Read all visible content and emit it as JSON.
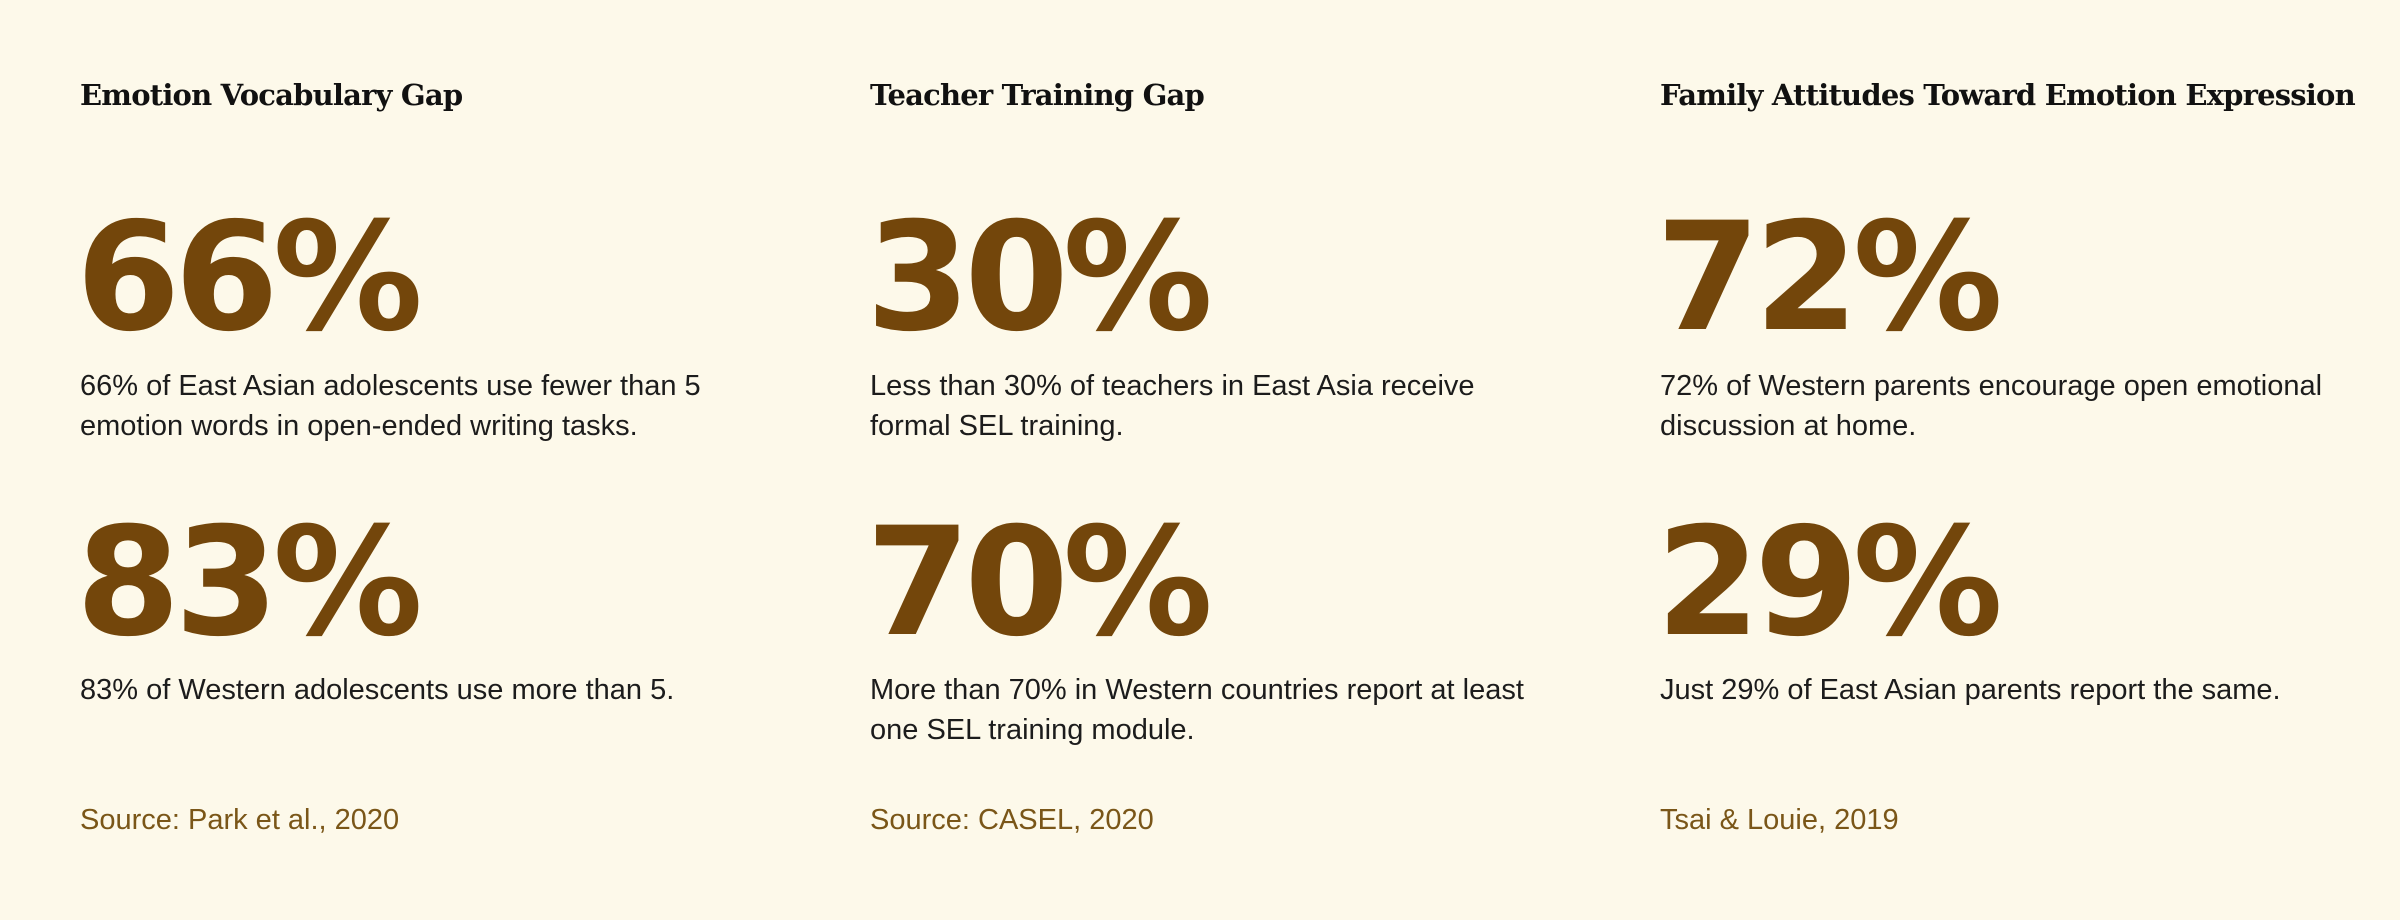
{
  "columns": [
    {
      "title": "Emotion Vocabulary Gap",
      "stats": [
        {
          "value": "66%",
          "description": "66% of East Asian adolescents use fewer than 5 emotion words in open-ended writing tasks."
        },
        {
          "value": "83%",
          "description": "83% of Western adolescents use more than 5."
        }
      ],
      "source": "Source: Park et al., 2020"
    },
    {
      "title": "Teacher Training Gap",
      "stats": [
        {
          "value": "30%",
          "description": "Less than 30% of teachers in East Asia receive formal SEL training."
        },
        {
          "value": "70%",
          "description": "More than 70% in Western countries report at least one SEL training module."
        }
      ],
      "source": "Source: CASEL, 2020"
    },
    {
      "title": "Family Attitudes Toward Emotion Expression",
      "stats": [
        {
          "value": "72%",
          "description": "72% of Western parents encourage open emotional discussion at home."
        },
        {
          "value": "29%",
          "description": "Just 29% of East Asian parents report the same."
        }
      ],
      "source": "Tsai & Louie, 2019"
    }
  ],
  "colors": {
    "background": "#fdf9ea",
    "stat_value": "#73460b",
    "source": "#7a5618",
    "title": "#111111",
    "body_text": "#1c1c1c"
  }
}
